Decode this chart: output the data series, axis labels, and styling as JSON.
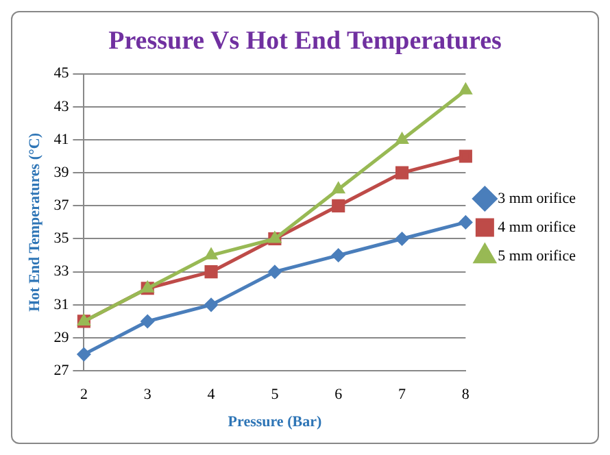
{
  "chart_data": {
    "type": "line",
    "title": "Pressure Vs Hot End Temperatures",
    "xlabel": "Pressure (Bar)",
    "ylabel": "Hot End Temperatures (°C)",
    "categories": [
      "2",
      "3",
      "4",
      "5",
      "6",
      "7",
      "8"
    ],
    "series": [
      {
        "name": "3 mm orifice",
        "color": "#4a7ebb",
        "marker": "diamond",
        "values": [
          28,
          30,
          31,
          33,
          34,
          35,
          36
        ]
      },
      {
        "name": "4 mm orifice",
        "color": "#be4b48",
        "marker": "square",
        "values": [
          30,
          32,
          33,
          35,
          37,
          39,
          40
        ]
      },
      {
        "name": "5 mm orifice",
        "color": "#98b954",
        "marker": "triangle",
        "values": [
          30,
          32,
          34,
          35,
          38,
          41,
          44
        ]
      }
    ],
    "ylim": [
      27,
      45
    ],
    "yticks": [
      27,
      29,
      31,
      33,
      35,
      37,
      39,
      41,
      43,
      45
    ],
    "grid": "y",
    "legend": "right",
    "line_style": "solid"
  }
}
